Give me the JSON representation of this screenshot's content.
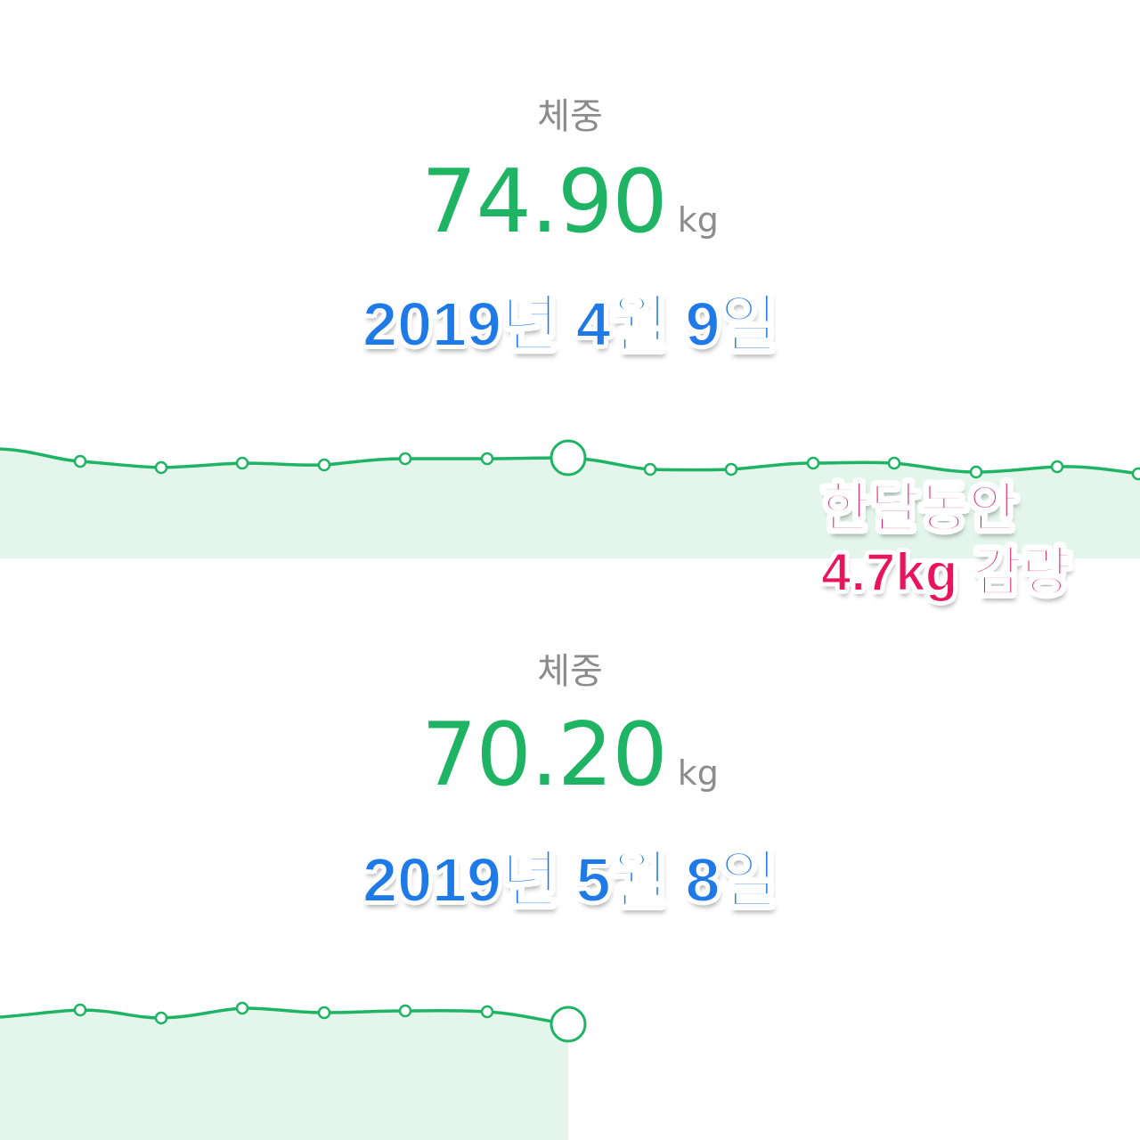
{
  "top": {
    "label": "체중",
    "value": "74.90",
    "unit": "kg",
    "date_caption": "2019년 4월 9일"
  },
  "bottom": {
    "label": "체중",
    "value": "70.20",
    "unit": "kg",
    "date_caption": "2019년 5월 8일"
  },
  "note": {
    "line1": "한달동안",
    "line2": "4.7kg 감량"
  },
  "colors": {
    "line": "#1fb464",
    "fill": "#e4f6ec",
    "value_text": "#1fb464",
    "label_text": "#8c8c8c",
    "caption_blue": "#1f7ae8",
    "caption_pink": "#e8145c"
  }
}
